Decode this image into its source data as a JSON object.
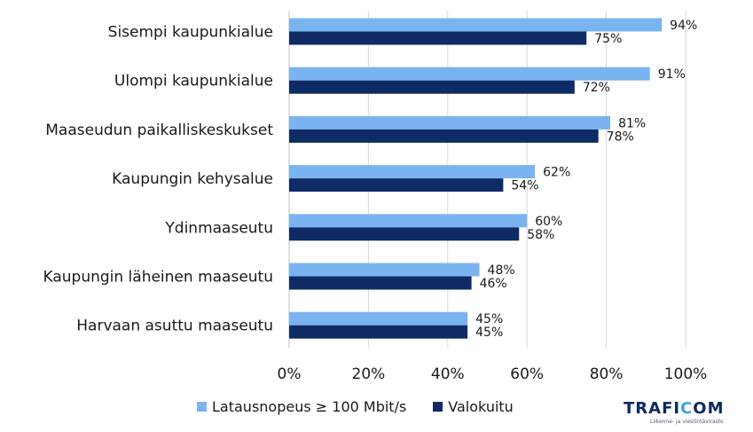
{
  "chart_data": {
    "type": "bar",
    "orientation": "horizontal",
    "categories": [
      "Sisempi kaupunkialue",
      "Ulompi kaupunkialue",
      "Maaseudun paikalliskeskukset",
      "Kaupungin kehysalue",
      "Ydinmaaseutu",
      "Kaupungin läheinen maaseutu",
      "Harvaan asuttu maaseutu"
    ],
    "series": [
      {
        "name": "Latausnopeus ≥ 100 Mbit/s",
        "color": "#7ab4f0",
        "values": [
          94,
          91,
          81,
          62,
          60,
          48,
          45
        ]
      },
      {
        "name": "Valokuitu",
        "color": "#0f2b66",
        "values": [
          75,
          72,
          78,
          54,
          58,
          46,
          45
        ]
      }
    ],
    "xlim": [
      0,
      100
    ],
    "xticks": [
      0,
      20,
      40,
      60,
      80,
      100
    ],
    "value_suffix": "%",
    "grid": "vertical",
    "legend_position": "bottom"
  },
  "logo": {
    "name": "TRAFICOM",
    "tagline": "Liikenne- ja viestintävirasto"
  }
}
